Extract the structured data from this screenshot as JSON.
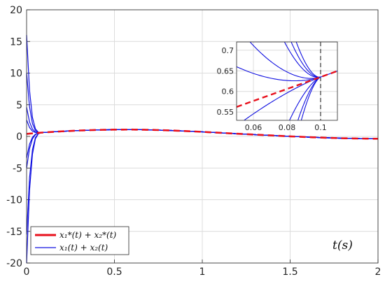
{
  "chart_data": {
    "type": "line",
    "xlabel": "t(s)",
    "xlim": [
      0,
      2
    ],
    "ylim": [
      -20,
      20
    ],
    "xticks": [
      "0",
      "0.5",
      "1",
      "1.5",
      "2"
    ],
    "yticks": [
      "20",
      "15",
      "10",
      "5",
      "0",
      "-5",
      "-10",
      "-15",
      "-20"
    ],
    "grid": true,
    "legend_position": "bottom-left",
    "reference": {
      "name": "x₁*(t) + x₂*(t)",
      "color": "#e8101c",
      "style": "solid",
      "x": [
        0,
        0.1,
        0.2,
        0.3,
        0.4,
        0.5,
        0.6,
        0.7,
        0.8,
        0.9,
        1.0,
        1.1,
        1.2,
        1.3,
        1.4,
        1.5,
        1.6,
        1.7,
        1.8,
        1.9,
        2.0
      ],
      "y": [
        0.4,
        0.63,
        0.8,
        0.93,
        1.02,
        1.07,
        1.08,
        1.04,
        0.96,
        0.85,
        0.72,
        0.57,
        0.42,
        0.28,
        0.14,
        0.01,
        -0.11,
        -0.21,
        -0.29,
        -0.34,
        -0.37
      ]
    },
    "trajectories": {
      "name": "x₁(t) + x₂(t)",
      "color": "#1010e0",
      "initial_values": [
        16,
        10,
        4.6,
        2.6,
        -3.4,
        -5,
        -15.5,
        -20
      ],
      "converge_at_x": 0.1
    },
    "inset": {
      "xlim": [
        0.05,
        0.11
      ],
      "ylim": [
        0.53,
        0.72
      ],
      "xticks": [
        "0.06",
        "0.08",
        "0.1"
      ],
      "yticks": [
        "0.7",
        "0.65",
        "0.6",
        "0.55"
      ],
      "dashed_vertical_at": 0.1,
      "converge_point": [
        0.1,
        0.635
      ]
    }
  },
  "colors": {
    "reference": "#e8101c",
    "trajectory": "#1010e0",
    "grid": "#dcdcdc"
  }
}
